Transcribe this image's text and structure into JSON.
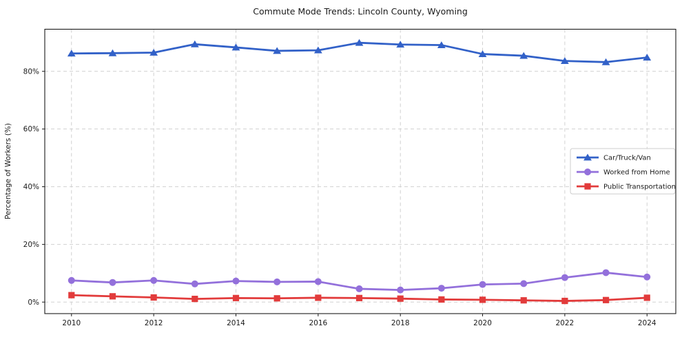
{
  "title": "Commute Mode Trends: Lincoln County, Wyoming",
  "chart_data": {
    "type": "line",
    "title": "Commute Mode Trends: Lincoln County, Wyoming",
    "xlabel": "",
    "ylabel": "Percentage of Workers (%)",
    "x": [
      2010,
      2011,
      2012,
      2013,
      2014,
      2015,
      2016,
      2017,
      2018,
      2019,
      2020,
      2021,
      2022,
      2023,
      2024
    ],
    "series": [
      {
        "name": "Car/Truck/Van",
        "color": "#3261c8",
        "marker": "triangle",
        "values": [
          86.2,
          86.3,
          86.5,
          89.4,
          88.3,
          87.1,
          87.3,
          89.9,
          89.3,
          89.1,
          86.0,
          85.4,
          83.6,
          83.2,
          84.8
        ]
      },
      {
        "name": "Worked from Home",
        "color": "#9370db",
        "marker": "circle",
        "values": [
          7.5,
          6.8,
          7.5,
          6.3,
          7.3,
          7.0,
          7.1,
          4.6,
          4.2,
          4.8,
          6.1,
          6.4,
          8.5,
          10.2,
          8.7
        ]
      },
      {
        "name": "Public Transportation",
        "color": "#e23b3b",
        "marker": "square",
        "values": [
          2.4,
          2.0,
          1.6,
          1.1,
          1.4,
          1.3,
          1.5,
          1.4,
          1.2,
          0.9,
          0.8,
          0.6,
          0.4,
          0.7,
          1.5
        ]
      }
    ],
    "xlim": [
      2009.35,
      2024.7
    ],
    "ylim": [
      -4.0,
      94.6
    ],
    "xticks": {
      "values": [
        2010,
        2012,
        2014,
        2016,
        2018,
        2020,
        2022,
        2024
      ],
      "labels": [
        "2010",
        "2012",
        "2014",
        "2016",
        "2018",
        "2020",
        "2022",
        "2024"
      ]
    },
    "yticks": {
      "values": [
        0,
        20,
        40,
        60,
        80
      ],
      "labels": [
        "0%",
        "20%",
        "40%",
        "60%",
        "80%"
      ]
    },
    "grid": true,
    "legend_position": "center right",
    "colors": {
      "grid": "#cbcbcb",
      "spine": "#1a1a1a",
      "legend_border": "#cccccc",
      "background": "#ffffff"
    }
  }
}
